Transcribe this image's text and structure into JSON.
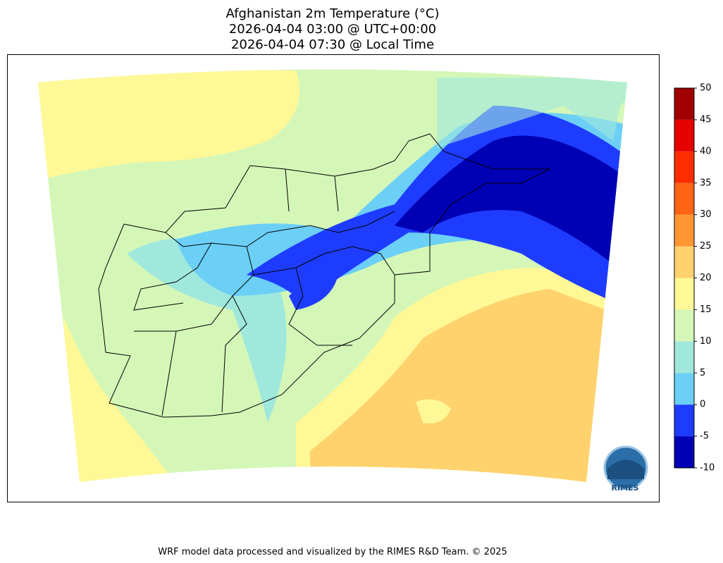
{
  "title": [
    "Afghanistan 2m Temperature (°C)",
    "2026-04-04 03:00 @ UTC+00:00",
    "2026-04-04 07:30 @ Local Time"
  ],
  "colorbar": {
    "levels": [
      -10,
      -5,
      0,
      5,
      10,
      15,
      20,
      25,
      30,
      35,
      40,
      45,
      50
    ],
    "colors": [
      "#0000b4",
      "#1e3cff",
      "#6ccff6",
      "#a0e8dc",
      "#d4f7b8",
      "#fff896",
      "#ffd26e",
      "#ff9632",
      "#ff6414",
      "#ff2d00",
      "#e60000",
      "#a00000"
    ],
    "ticks": [
      -10,
      -5,
      0,
      5,
      10,
      15,
      20,
      25,
      30,
      35,
      40,
      45,
      50
    ]
  },
  "logo": "RIMES",
  "footer": "WRF model data processed and visualized by the RIMES R&D Team. © 2025"
}
